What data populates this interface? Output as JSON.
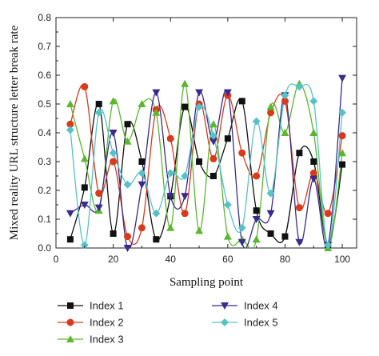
{
  "chart_data": {
    "type": "line",
    "title": "",
    "xlabel": "Sampling point",
    "ylabel": "Mixed reality URL structure letter break rate",
    "xlim": [
      0,
      105
    ],
    "ylim": [
      0,
      0.8
    ],
    "xticks": [
      0,
      20,
      40,
      60,
      80,
      100
    ],
    "yticks": [
      0.0,
      0.1,
      0.2,
      0.3,
      0.4,
      0.5,
      0.6,
      0.7,
      0.8
    ],
    "grid": false,
    "legend_position": "bottom",
    "x": [
      5,
      10,
      15,
      20,
      25,
      30,
      35,
      40,
      45,
      50,
      55,
      60,
      65,
      70,
      75,
      80,
      85,
      90,
      95,
      100
    ],
    "series": [
      {
        "name": "Index 1",
        "color": "#111111",
        "marker": "square",
        "values": [
          0.03,
          0.21,
          0.5,
          0.05,
          0.43,
          0.3,
          0.03,
          0.18,
          0.49,
          0.3,
          0.25,
          0.38,
          0.51,
          0.13,
          0.05,
          0.04,
          0.33,
          0.3,
          0.01,
          0.29
        ]
      },
      {
        "name": "Index 2",
        "color": "#d93a1c",
        "marker": "circle",
        "values": [
          0.43,
          0.56,
          0.19,
          0.3,
          0.04,
          0.07,
          0.48,
          0.38,
          0.12,
          0.5,
          0.31,
          0.53,
          0.33,
          0.25,
          0.47,
          0.51,
          0.14,
          0.26,
          0.12,
          0.39
        ]
      },
      {
        "name": "Index 3",
        "color": "#5ab82e",
        "marker": "triangle-up",
        "values": [
          0.5,
          0.31,
          0.13,
          0.51,
          0.37,
          0.5,
          0.47,
          0.07,
          0.57,
          0.06,
          0.43,
          0.04,
          0.03,
          0.03,
          0.49,
          0.4,
          0.57,
          0.4,
          0.0,
          0.33
        ]
      },
      {
        "name": "Index 4",
        "color": "#3a2a8f",
        "marker": "triangle-down",
        "values": [
          0.12,
          0.15,
          0.14,
          0.4,
          0.0,
          0.22,
          0.54,
          0.18,
          0.18,
          0.54,
          0.37,
          0.54,
          0.02,
          0.1,
          0.12,
          0.53,
          0.02,
          0.24,
          0.01,
          0.59
        ]
      },
      {
        "name": "Index 5",
        "color": "#56c2c8",
        "marker": "diamond",
        "values": [
          0.41,
          0.01,
          0.47,
          0.33,
          0.22,
          0.26,
          0.12,
          0.26,
          0.25,
          0.49,
          0.39,
          0.15,
          0.07,
          0.44,
          0.19,
          0.53,
          0.56,
          0.51,
          0.01,
          0.47
        ]
      }
    ]
  }
}
